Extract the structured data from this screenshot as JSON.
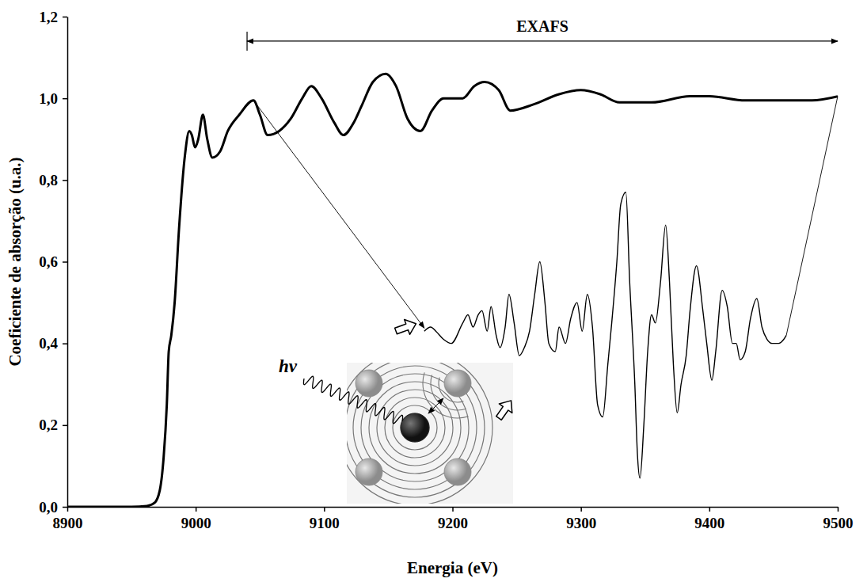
{
  "chart_data": {
    "type": "line",
    "x_label": "Energia (eV)",
    "y_label": "Coeficiente de absorção (u.a.)",
    "xlim": [
      8900,
      9500
    ],
    "xticks": [
      8900,
      9000,
      9100,
      9200,
      9300,
      9400,
      9500
    ],
    "ylim": [
      0,
      1.2
    ],
    "yticks": [
      {
        "value": 0,
        "label": "0,0"
      },
      {
        "value": 0.2,
        "label": "0,2"
      },
      {
        "value": 0.4,
        "label": "0,4"
      },
      {
        "value": 0.6,
        "label": "0,6"
      },
      {
        "value": 0.8,
        "label": "0,8"
      },
      {
        "value": 1.0,
        "label": "1,0"
      },
      {
        "value": 1.2,
        "label": "1,2"
      }
    ],
    "grid": false,
    "series": [
      {
        "color": "#000000",
        "line_style": "solid",
        "x": [
          8900,
          8950,
          8962,
          8968,
          8972,
          8975,
          8977.5,
          8979,
          8981,
          8983.6,
          8987,
          8991.6,
          8995,
          8997,
          8999.5,
          9002,
          9005.6,
          9009,
          9013,
          9019,
          9025,
          9034,
          9045,
          9050,
          9056,
          9065,
          9074,
          9083,
          9090,
          9098,
          9108,
          9115,
          9123,
          9129,
          9138,
          9148,
          9156,
          9165,
          9175,
          9184,
          9193,
          9208,
          9217,
          9225,
          9236,
          9245,
          9263,
          9283,
          9300,
          9315,
          9330,
          9355,
          9385,
          9400,
          9428,
          9459,
          9480,
          9500
        ],
        "values": [
          0,
          0,
          0.002,
          0.01,
          0.04,
          0.12,
          0.25,
          0.38,
          0.42,
          0.5,
          0.68,
          0.86,
          0.92,
          0.91,
          0.88,
          0.9,
          0.96,
          0.9,
          0.855,
          0.87,
          0.92,
          0.96,
          0.995,
          0.96,
          0.91,
          0.92,
          0.95,
          1.0,
          1.03,
          1.0,
          0.94,
          0.91,
          0.94,
          0.98,
          1.04,
          1.06,
          1.03,
          0.95,
          0.92,
          0.97,
          1.0,
          1.0,
          1.03,
          1.04,
          1.02,
          0.97,
          0.985,
          1.01,
          1.02,
          1.01,
          0.99,
          0.99,
          1.005,
          1.005,
          0.995,
          0.995,
          0.995,
          1.005
        ]
      },
      {
        "color": "#000000",
        "line_style": "solid",
        "x": [
          9178,
          9183,
          9187,
          9193,
          9199,
          9208,
          9212,
          9216,
          9220,
          9223,
          9227,
          9230,
          9234,
          9237,
          9241,
          9244,
          9248,
          9252,
          9256,
          9260,
          9264,
          9268,
          9272,
          9275,
          9280,
          9283,
          9288,
          9292,
          9297,
          9301,
          9305,
          9309,
          9313,
          9317,
          9321,
          9324,
          9328,
          9331,
          9335,
          9338,
          9342,
          9344,
          9346,
          9349,
          9352,
          9355,
          9358,
          9362,
          9366,
          9369,
          9372,
          9375,
          9378,
          9382,
          9385,
          9390,
          9395,
          9398,
          9402,
          9405,
          9410,
          9414,
          9418,
          9421,
          9424,
          9428,
          9432,
          9437,
          9441,
          9445,
          9449,
          9454,
          9458,
          9460
        ],
        "values": [
          0.43,
          0.44,
          0.43,
          0.41,
          0.4,
          0.45,
          0.47,
          0.44,
          0.47,
          0.48,
          0.43,
          0.49,
          0.42,
          0.39,
          0.44,
          0.52,
          0.45,
          0.37,
          0.39,
          0.43,
          0.52,
          0.6,
          0.5,
          0.4,
          0.38,
          0.44,
          0.4,
          0.46,
          0.5,
          0.43,
          0.52,
          0.44,
          0.25,
          0.22,
          0.35,
          0.45,
          0.6,
          0.74,
          0.77,
          0.55,
          0.3,
          0.13,
          0.07,
          0.2,
          0.38,
          0.47,
          0.45,
          0.55,
          0.69,
          0.55,
          0.35,
          0.23,
          0.3,
          0.37,
          0.48,
          0.59,
          0.48,
          0.4,
          0.31,
          0.38,
          0.53,
          0.49,
          0.4,
          0.4,
          0.36,
          0.38,
          0.46,
          0.51,
          0.44,
          0.41,
          0.4,
          0.4,
          0.41,
          0.42
        ]
      }
    ],
    "annotations": [
      {
        "text": "EXAFS",
        "x_start": 9040,
        "x_end": 9500,
        "y": 1.14
      },
      {
        "text": "hν"
      }
    ]
  }
}
